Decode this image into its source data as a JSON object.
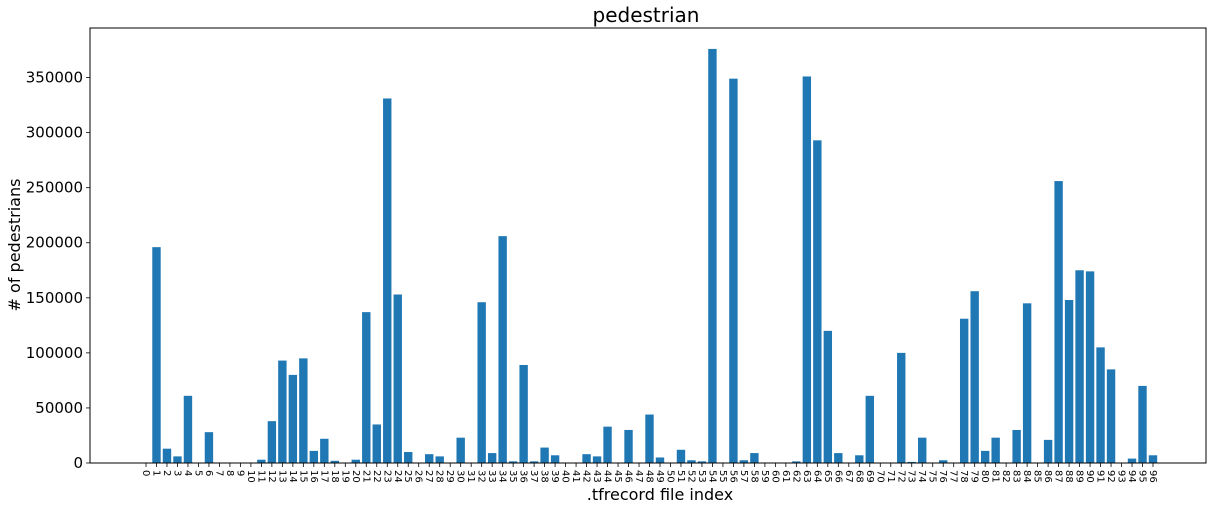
{
  "chart_data": {
    "type": "bar",
    "title": "pedestrian",
    "xlabel": ".tfrecord file index",
    "ylabel": "# of pedestrians",
    "ylim": [
      0,
      395000
    ],
    "yticks": [
      0,
      50000,
      100000,
      150000,
      200000,
      250000,
      300000,
      350000
    ],
    "grid": false,
    "bar_color": "#1f77b4",
    "categories": [
      "0",
      "1",
      "2",
      "3",
      "4",
      "5",
      "6",
      "7",
      "8",
      "9",
      "10",
      "11",
      "12",
      "13",
      "14",
      "15",
      "16",
      "17",
      "18",
      "19",
      "20",
      "21",
      "22",
      "23",
      "24",
      "25",
      "26",
      "27",
      "28",
      "29",
      "30",
      "31",
      "32",
      "33",
      "34",
      "35",
      "36",
      "37",
      "38",
      "39",
      "40",
      "41",
      "42",
      "43",
      "44",
      "45",
      "46",
      "47",
      "48",
      "49",
      "50",
      "51",
      "52",
      "53",
      "54",
      "55",
      "56",
      "57",
      "58",
      "59",
      "60",
      "61",
      "62",
      "63",
      "64",
      "65",
      "66",
      "67",
      "68",
      "69",
      "70",
      "71",
      "72",
      "73",
      "74",
      "75",
      "76",
      "77",
      "78",
      "79",
      "80",
      "81",
      "82",
      "83",
      "84",
      "85",
      "86",
      "87",
      "88",
      "89",
      "90",
      "91",
      "92",
      "93",
      "94",
      "95",
      "96"
    ],
    "values": [
      0,
      196000,
      13000,
      6000,
      61000,
      0,
      28000,
      0,
      0,
      0,
      0,
      3000,
      38000,
      93000,
      80000,
      95000,
      11000,
      22000,
      2000,
      0,
      3000,
      137000,
      35000,
      331000,
      153000,
      10000,
      0,
      8000,
      6000,
      0,
      23000,
      0,
      146000,
      9000,
      206000,
      1500,
      89000,
      1500,
      14000,
      7000,
      0,
      0,
      8000,
      6000,
      33000,
      0,
      30000,
      0,
      44000,
      5000,
      0,
      12000,
      2500,
      1500,
      376000,
      0,
      349000,
      2500,
      9000,
      0,
      0,
      0,
      1500,
      351000,
      293000,
      120000,
      9000,
      0,
      7000,
      61000,
      0,
      0,
      100000,
      1000,
      23000,
      0,
      2500,
      0,
      131000,
      156000,
      11000,
      23000,
      0,
      30000,
      145000,
      0,
      21000,
      256000,
      148000,
      175000,
      174000,
      105000,
      85000,
      0,
      4000,
      70000,
      7000
    ]
  }
}
